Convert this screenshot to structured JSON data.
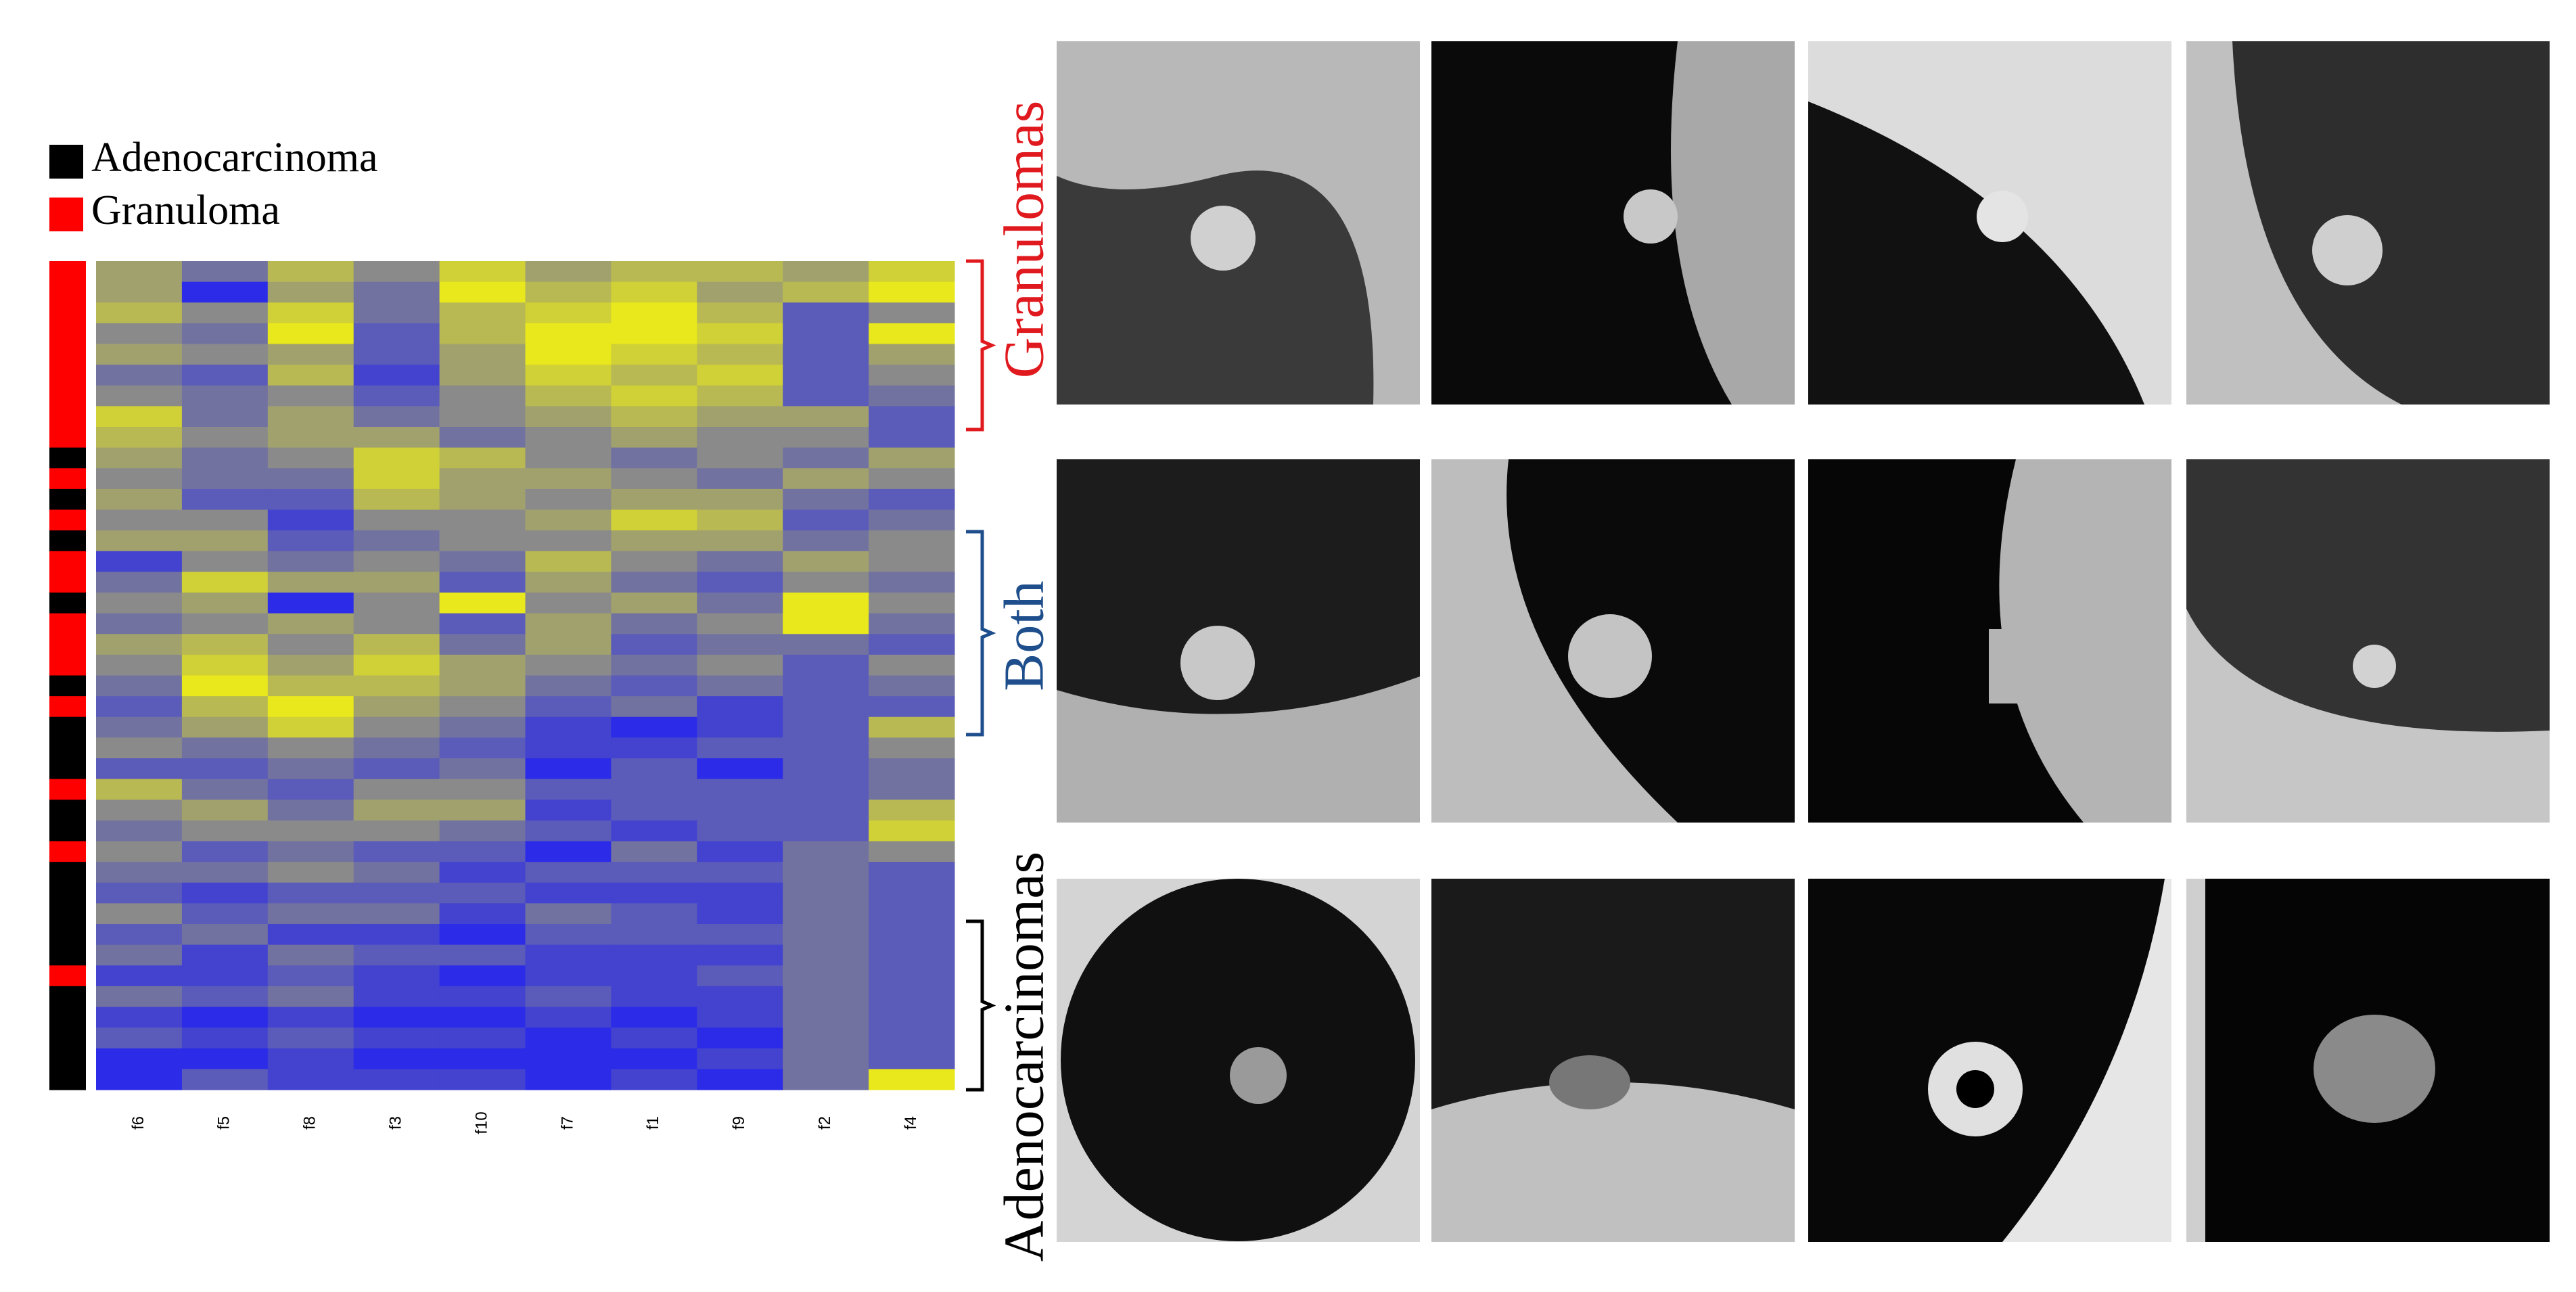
{
  "chart_data": {
    "type": "heatmap",
    "legend": [
      {
        "name": "Adenocarcinoma",
        "color": "#000000"
      },
      {
        "name": "Granuloma",
        "color": "#ff0000"
      }
    ],
    "columns": [
      "f6",
      "f5",
      "f8",
      "f3",
      "f10",
      "f7",
      "f1",
      "f9",
      "f2",
      "f4"
    ],
    "zlim": [
      0,
      1
    ],
    "colormap": [
      "#1414ff",
      "#8a8a8a",
      "#ffff00"
    ],
    "row_class": [
      1,
      1,
      1,
      1,
      1,
      1,
      1,
      1,
      1,
      0,
      1,
      0,
      1,
      0,
      1,
      1,
      0,
      1,
      1,
      1,
      0,
      1,
      0,
      0,
      0,
      1,
      0,
      0,
      1,
      0,
      0,
      0,
      0,
      0,
      1,
      0,
      0,
      0,
      0,
      0
    ],
    "values": [
      [
        0.6,
        0.4,
        0.7,
        0.5,
        0.8,
        0.6,
        0.7,
        0.7,
        0.6,
        0.8
      ],
      [
        0.6,
        0.1,
        0.6,
        0.4,
        0.9,
        0.7,
        0.8,
        0.6,
        0.7,
        0.9
      ],
      [
        0.7,
        0.5,
        0.8,
        0.4,
        0.7,
        0.8,
        0.9,
        0.7,
        0.3,
        0.5
      ],
      [
        0.5,
        0.4,
        0.9,
        0.3,
        0.7,
        0.9,
        0.9,
        0.8,
        0.3,
        0.9
      ],
      [
        0.6,
        0.5,
        0.6,
        0.3,
        0.6,
        0.9,
        0.8,
        0.7,
        0.3,
        0.6
      ],
      [
        0.4,
        0.3,
        0.7,
        0.2,
        0.6,
        0.8,
        0.7,
        0.8,
        0.3,
        0.5
      ],
      [
        0.5,
        0.4,
        0.5,
        0.3,
        0.5,
        0.7,
        0.8,
        0.7,
        0.3,
        0.4
      ],
      [
        0.8,
        0.4,
        0.6,
        0.4,
        0.5,
        0.6,
        0.7,
        0.6,
        0.6,
        0.3
      ],
      [
        0.7,
        0.5,
        0.6,
        0.6,
        0.4,
        0.5,
        0.6,
        0.5,
        0.5,
        0.3
      ],
      [
        0.6,
        0.4,
        0.5,
        0.8,
        0.7,
        0.5,
        0.4,
        0.5,
        0.4,
        0.6
      ],
      [
        0.5,
        0.4,
        0.4,
        0.8,
        0.6,
        0.6,
        0.5,
        0.4,
        0.6,
        0.5
      ],
      [
        0.6,
        0.3,
        0.3,
        0.7,
        0.6,
        0.5,
        0.6,
        0.6,
        0.4,
        0.3
      ],
      [
        0.5,
        0.5,
        0.2,
        0.5,
        0.5,
        0.6,
        0.8,
        0.7,
        0.3,
        0.4
      ],
      [
        0.6,
        0.6,
        0.3,
        0.4,
        0.5,
        0.5,
        0.6,
        0.6,
        0.4,
        0.5
      ],
      [
        0.2,
        0.5,
        0.4,
        0.5,
        0.4,
        0.7,
        0.5,
        0.4,
        0.6,
        0.5
      ],
      [
        0.4,
        0.8,
        0.6,
        0.6,
        0.3,
        0.6,
        0.4,
        0.3,
        0.5,
        0.4
      ],
      [
        0.5,
        0.6,
        0.1,
        0.5,
        0.9,
        0.5,
        0.6,
        0.4,
        0.9,
        0.5
      ],
      [
        0.4,
        0.5,
        0.6,
        0.5,
        0.3,
        0.6,
        0.4,
        0.5,
        0.9,
        0.4
      ],
      [
        0.6,
        0.7,
        0.5,
        0.7,
        0.4,
        0.6,
        0.3,
        0.4,
        0.4,
        0.3
      ],
      [
        0.5,
        0.8,
        0.6,
        0.8,
        0.6,
        0.5,
        0.4,
        0.5,
        0.3,
        0.5
      ],
      [
        0.4,
        0.9,
        0.7,
        0.7,
        0.6,
        0.4,
        0.3,
        0.4,
        0.3,
        0.4
      ],
      [
        0.3,
        0.7,
        0.9,
        0.6,
        0.5,
        0.3,
        0.4,
        0.2,
        0.3,
        0.3
      ],
      [
        0.4,
        0.6,
        0.8,
        0.5,
        0.4,
        0.2,
        0.1,
        0.2,
        0.3,
        0.7
      ],
      [
        0.5,
        0.4,
        0.5,
        0.4,
        0.3,
        0.2,
        0.2,
        0.3,
        0.3,
        0.5
      ],
      [
        0.3,
        0.3,
        0.4,
        0.3,
        0.4,
        0.1,
        0.3,
        0.1,
        0.3,
        0.4
      ],
      [
        0.7,
        0.4,
        0.3,
        0.5,
        0.5,
        0.3,
        0.3,
        0.3,
        0.3,
        0.4
      ],
      [
        0.5,
        0.6,
        0.4,
        0.6,
        0.6,
        0.2,
        0.3,
        0.3,
        0.3,
        0.7
      ],
      [
        0.4,
        0.5,
        0.5,
        0.5,
        0.4,
        0.3,
        0.2,
        0.3,
        0.3,
        0.8
      ],
      [
        0.5,
        0.3,
        0.4,
        0.3,
        0.3,
        0.1,
        0.4,
        0.2,
        0.4,
        0.5
      ],
      [
        0.4,
        0.4,
        0.5,
        0.4,
        0.2,
        0.3,
        0.3,
        0.3,
        0.4,
        0.3
      ],
      [
        0.3,
        0.2,
        0.3,
        0.3,
        0.3,
        0.2,
        0.2,
        0.2,
        0.4,
        0.3
      ],
      [
        0.5,
        0.3,
        0.4,
        0.4,
        0.2,
        0.4,
        0.3,
        0.2,
        0.4,
        0.3
      ],
      [
        0.3,
        0.4,
        0.2,
        0.2,
        0.1,
        0.3,
        0.3,
        0.3,
        0.4,
        0.3
      ],
      [
        0.4,
        0.2,
        0.4,
        0.3,
        0.3,
        0.2,
        0.2,
        0.2,
        0.4,
        0.3
      ],
      [
        0.2,
        0.2,
        0.3,
        0.2,
        0.1,
        0.2,
        0.2,
        0.3,
        0.4,
        0.3
      ],
      [
        0.4,
        0.3,
        0.4,
        0.2,
        0.2,
        0.3,
        0.2,
        0.2,
        0.4,
        0.3
      ],
      [
        0.2,
        0.1,
        0.2,
        0.1,
        0.1,
        0.2,
        0.1,
        0.2,
        0.4,
        0.3
      ],
      [
        0.3,
        0.2,
        0.3,
        0.2,
        0.2,
        0.1,
        0.2,
        0.1,
        0.4,
        0.3
      ],
      [
        0.1,
        0.1,
        0.2,
        0.1,
        0.1,
        0.1,
        0.1,
        0.2,
        0.4,
        0.3
      ],
      [
        0.1,
        0.3,
        0.2,
        0.2,
        0.2,
        0.1,
        0.2,
        0.1,
        0.4,
        0.9
      ]
    ]
  },
  "image_groups": [
    {
      "label": "Granulomas",
      "color": "#e0191e"
    },
    {
      "label": "Both",
      "color": "#1f4e8c"
    },
    {
      "label": "Adenocarcinomas",
      "color": "#000000"
    }
  ]
}
